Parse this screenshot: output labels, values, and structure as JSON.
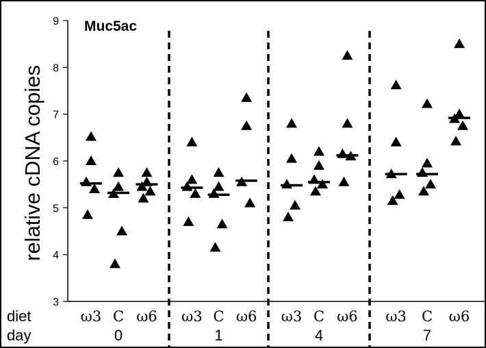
{
  "chart_data": {
    "type": "scatter",
    "title": "Muc5ac",
    "ylabel": "relative cDNA copies",
    "ylim": [
      3,
      9
    ],
    "yticks": [
      3,
      4,
      5,
      6,
      7,
      8,
      9
    ],
    "row_labels": {
      "diet": "diet",
      "day": "day"
    },
    "groups": [
      {
        "day": "0",
        "diets": [
          {
            "diet": "ω3",
            "points": [
              6.52,
              6.0,
              5.55,
              5.4,
              4.85
            ],
            "median": 5.52
          },
          {
            "diet": "C",
            "points": [
              5.75,
              5.45,
              5.3,
              4.5,
              3.8
            ],
            "median": 5.32
          },
          {
            "diet": "ω6",
            "points": [
              5.75,
              5.55,
              5.45,
              5.35,
              5.2
            ],
            "median": 5.5
          }
        ]
      },
      {
        "day": "1",
        "diets": [
          {
            "diet": "ω3",
            "points": [
              6.4,
              5.6,
              5.45,
              5.3,
              4.7
            ],
            "median": 5.43
          },
          {
            "diet": "C",
            "points": [
              5.75,
              5.45,
              5.3,
              4.65,
              4.15
            ],
            "median": 5.28
          },
          {
            "diet": "ω6",
            "points": [
              7.35,
              6.75,
              5.55,
              5.1
            ],
            "median": 5.58
          }
        ]
      },
      {
        "day": "4",
        "diets": [
          {
            "diet": "ω3",
            "points": [
              6.8,
              6.05,
              5.5,
              5.05,
              4.8
            ],
            "median": 5.48
          },
          {
            "diet": "C",
            "points": [
              6.2,
              5.9,
              5.6,
              5.5,
              5.35
            ],
            "median": 5.55
          },
          {
            "diet": "ω6",
            "points": [
              8.25,
              6.8,
              6.15,
              6.1,
              5.55
            ],
            "median": 6.12
          }
        ]
      },
      {
        "day": "7",
        "diets": [
          {
            "diet": "ω3",
            "points": [
              7.62,
              6.4,
              5.72,
              5.28,
              5.15
            ],
            "median": 5.72
          },
          {
            "diet": "C",
            "points": [
              7.22,
              5.95,
              5.75,
              5.5,
              5.35
            ],
            "median": 5.72
          },
          {
            "diet": "ω6",
            "points": [
              8.5,
              7.0,
              6.9,
              6.75,
              6.42
            ],
            "median": 6.92
          }
        ]
      }
    ]
  }
}
